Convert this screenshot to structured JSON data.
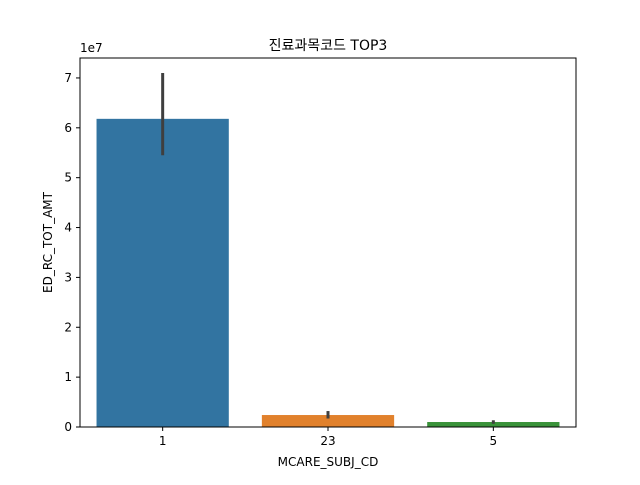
{
  "chart_data": {
    "type": "bar",
    "title": "진료과목코드 TOP3",
    "xlabel": "MCARE_SUBJ_CD",
    "ylabel": "ED_RC_TOT_AMT",
    "y_offset_text": "1e7",
    "categories": [
      "1",
      "23",
      "5"
    ],
    "values": [
      61800000,
      2400000,
      1000000
    ],
    "error_bars": [
      [
        54500000,
        71000000
      ],
      [
        1700000,
        3200000
      ],
      [
        650000,
        1350000
      ]
    ],
    "colors": [
      "#3274a1",
      "#e1812c",
      "#3a923a"
    ],
    "error_bar_color": "#3f3f3f",
    "ylim": [
      0,
      74000000
    ],
    "y_ticks": [
      0,
      10000000,
      20000000,
      30000000,
      40000000,
      50000000,
      60000000,
      70000000
    ],
    "y_tick_labels": [
      "0",
      "1",
      "2",
      "3",
      "4",
      "5",
      "6",
      "7"
    ],
    "grid": false,
    "legend": "none"
  }
}
